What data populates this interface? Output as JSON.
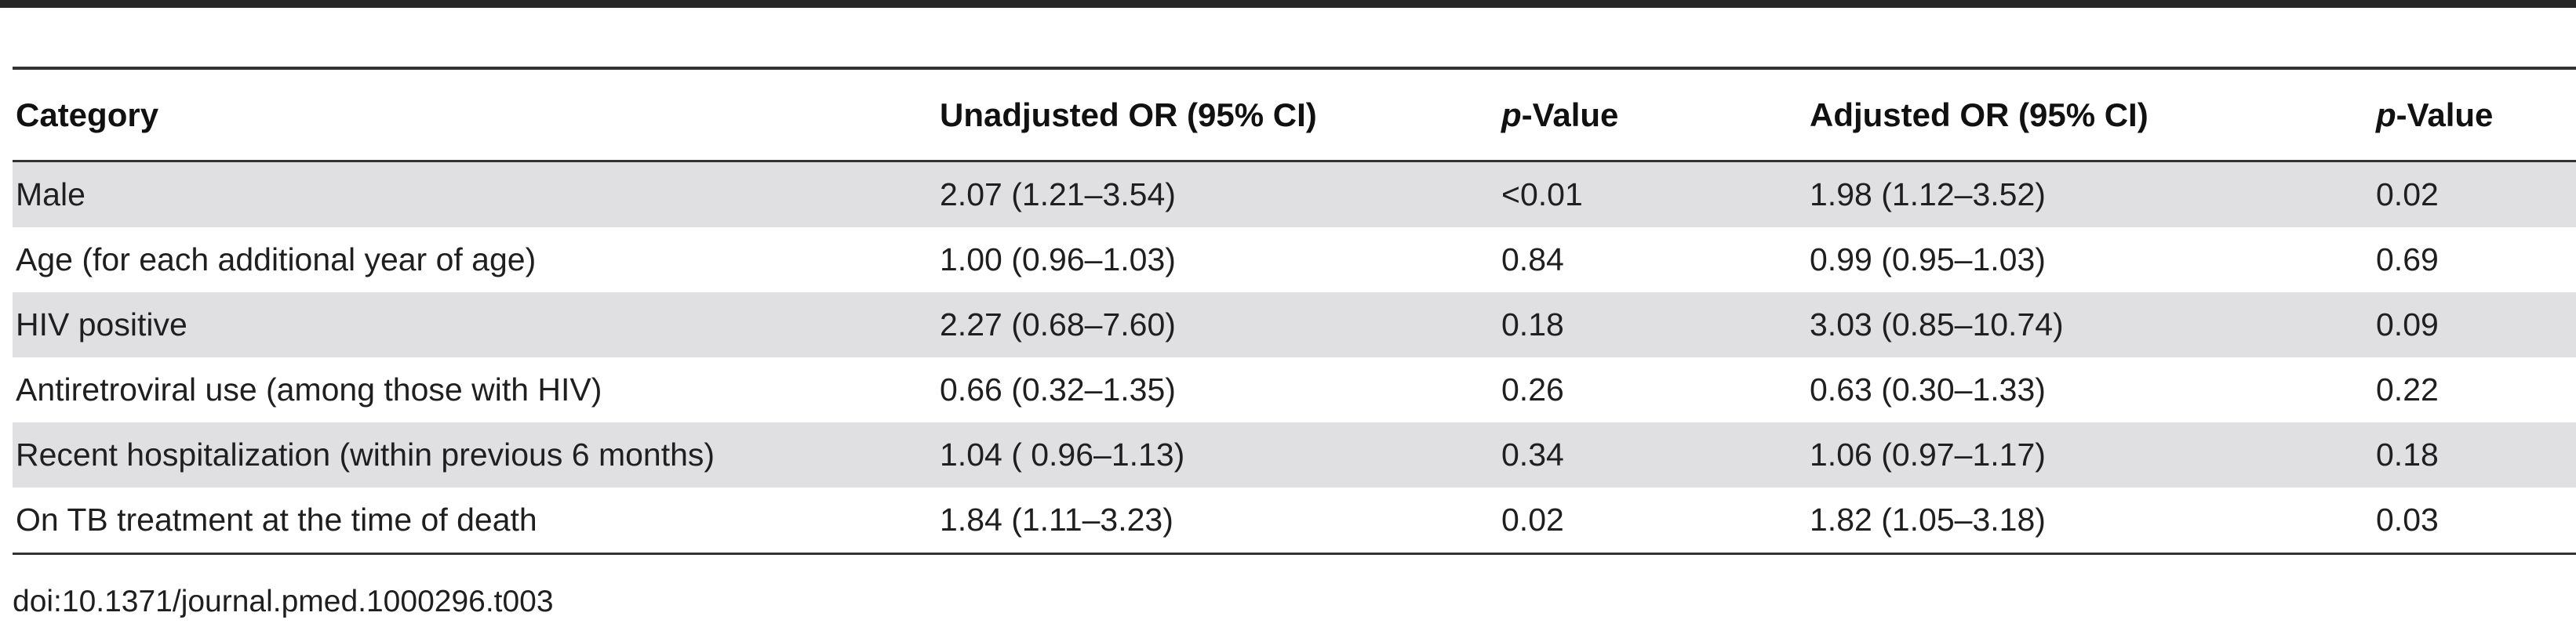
{
  "table": {
    "headers": {
      "category": "Category",
      "unadjusted": "Unadjusted OR (95% CI)",
      "p1_italic": "p",
      "p1_rest": "-Value",
      "adjusted": "Adjusted OR (95% CI)",
      "p2_italic": "p",
      "p2_rest": "-Value"
    },
    "rows": [
      {
        "category": "Male",
        "unadjusted": "2.07 (1.21–3.54)",
        "p1": "<0.01",
        "adjusted": "1.98 (1.12–3.52)",
        "p2": "0.02"
      },
      {
        "category": "Age (for each additional year of age)",
        "unadjusted": "1.00 (0.96–1.03)",
        "p1": "0.84",
        "adjusted": "0.99 (0.95–1.03)",
        "p2": "0.69"
      },
      {
        "category": "HIV positive",
        "unadjusted": "2.27 (0.68–7.60)",
        "p1": "0.18",
        "adjusted": "3.03 (0.85–10.74)",
        "p2": "0.09"
      },
      {
        "category": "Antiretroviral use (among those with HIV)",
        "unadjusted": "0.66 (0.32–1.35)",
        "p1": "0.26",
        "adjusted": "0.63 (0.30–1.33)",
        "p2": "0.22"
      },
      {
        "category": "Recent hospitalization (within previous 6 months)",
        "unadjusted": "1.04 ( 0.96–1.13)",
        "p1": "0.34",
        "adjusted": "1.06 (0.97–1.17)",
        "p2": "0.18"
      },
      {
        "category": "On TB treatment at the time of death",
        "unadjusted": "1.84 (1.11–3.23)",
        "p1": "0.02",
        "adjusted": "1.82 (1.05–3.18)",
        "p2": "0.03"
      }
    ]
  },
  "footer": {
    "doi": "doi:10.1371/journal.pmed.1000296.t003"
  }
}
